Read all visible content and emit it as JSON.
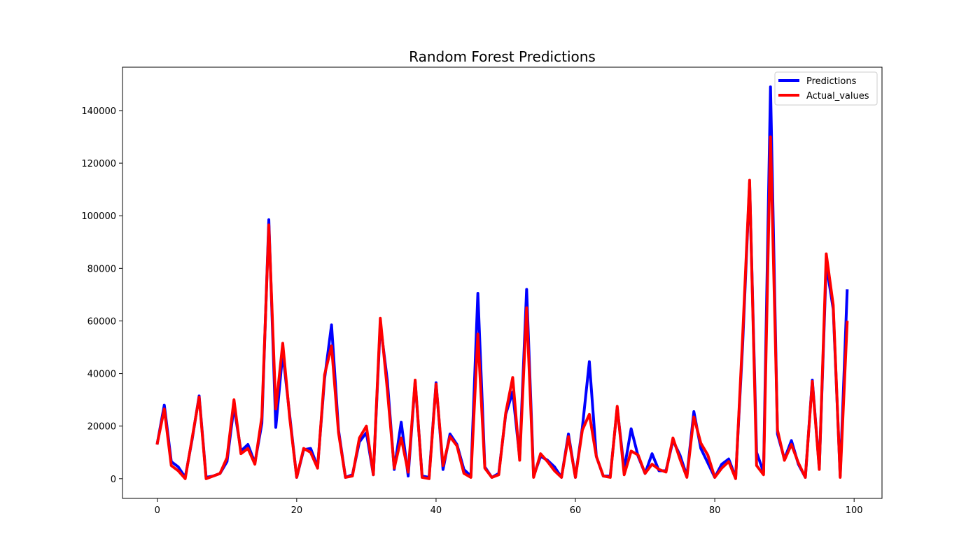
{
  "chart_data": {
    "type": "line",
    "title": "Random Forest Predictions",
    "xlabel": "",
    "ylabel": "",
    "xlim": [
      -5,
      104
    ],
    "ylim": [
      -7500,
      156500
    ],
    "xticks": [
      0,
      20,
      40,
      60,
      80,
      100
    ],
    "yticks": [
      0,
      20000,
      40000,
      60000,
      80000,
      100000,
      120000,
      140000
    ],
    "grid": false,
    "legend_position": "upper right",
    "x": [
      0,
      1,
      2,
      3,
      4,
      5,
      6,
      7,
      8,
      9,
      10,
      11,
      12,
      13,
      14,
      15,
      16,
      17,
      18,
      19,
      20,
      21,
      22,
      23,
      24,
      25,
      26,
      27,
      28,
      29,
      30,
      31,
      32,
      33,
      34,
      35,
      36,
      37,
      38,
      39,
      40,
      41,
      42,
      43,
      44,
      45,
      46,
      47,
      48,
      49,
      50,
      51,
      52,
      53,
      54,
      55,
      56,
      57,
      58,
      59,
      60,
      61,
      62,
      63,
      64,
      65,
      66,
      67,
      68,
      69,
      70,
      71,
      72,
      73,
      74,
      75,
      76,
      77,
      78,
      79,
      80,
      81,
      82,
      83,
      84,
      85,
      86,
      87,
      88,
      89,
      90,
      91,
      92,
      93,
      94,
      95,
      96,
      97,
      98,
      99
    ],
    "series": [
      {
        "name": "Predictions",
        "color": "#0000ff",
        "values": [
          13500,
          28000,
          6500,
          4500,
          500,
          15000,
          31500,
          500,
          1000,
          2000,
          6500,
          27500,
          10500,
          13000,
          6000,
          21000,
          98500,
          19500,
          48000,
          24000,
          500,
          11000,
          11500,
          4500,
          38000,
          58500,
          18500,
          500,
          1500,
          14000,
          17500,
          1500,
          59000,
          37500,
          3500,
          21500,
          1000,
          37000,
          1000,
          500,
          36500,
          3500,
          17000,
          13000,
          3500,
          1000,
          70500,
          4500,
          500,
          2000,
          24500,
          33000,
          8000,
          72000,
          1000,
          8500,
          7000,
          4500,
          500,
          17000,
          500,
          19500,
          44500,
          8500,
          1000,
          1000,
          27000,
          3500,
          19000,
          8500,
          2000,
          9500,
          3000,
          3000,
          14500,
          9000,
          1000,
          25500,
          11500,
          6000,
          500,
          5500,
          7500,
          500,
          51000,
          112500,
          10000,
          2500,
          149000,
          17000,
          7500,
          14500,
          5500,
          500,
          37500,
          4000,
          81500,
          64500,
          1000,
          71500
        ]
      },
      {
        "name": "Actual_values",
        "color": "#ff0000",
        "values": [
          13500,
          26500,
          5000,
          3000,
          0,
          15500,
          31000,
          0,
          1000,
          2000,
          8000,
          30000,
          9500,
          11500,
          5500,
          23500,
          96500,
          26500,
          51500,
          23000,
          500,
          11500,
          10000,
          4000,
          39500,
          50500,
          17500,
          500,
          1000,
          15500,
          20000,
          1500,
          61000,
          34000,
          4000,
          15500,
          2500,
          37500,
          500,
          0,
          36000,
          5000,
          16000,
          12500,
          2000,
          500,
          55000,
          4000,
          500,
          1500,
          25000,
          38500,
          7000,
          65000,
          500,
          9500,
          6500,
          3000,
          500,
          16000,
          500,
          18500,
          24500,
          8500,
          1000,
          500,
          27500,
          1500,
          10500,
          9000,
          2000,
          5500,
          3500,
          2500,
          15500,
          7500,
          500,
          23500,
          13500,
          9000,
          500,
          4000,
          6500,
          0,
          54000,
          113500,
          5000,
          1500,
          130000,
          18500,
          7000,
          13000,
          6000,
          500,
          37000,
          3500,
          85500,
          66000,
          500,
          59500
        ]
      }
    ]
  }
}
